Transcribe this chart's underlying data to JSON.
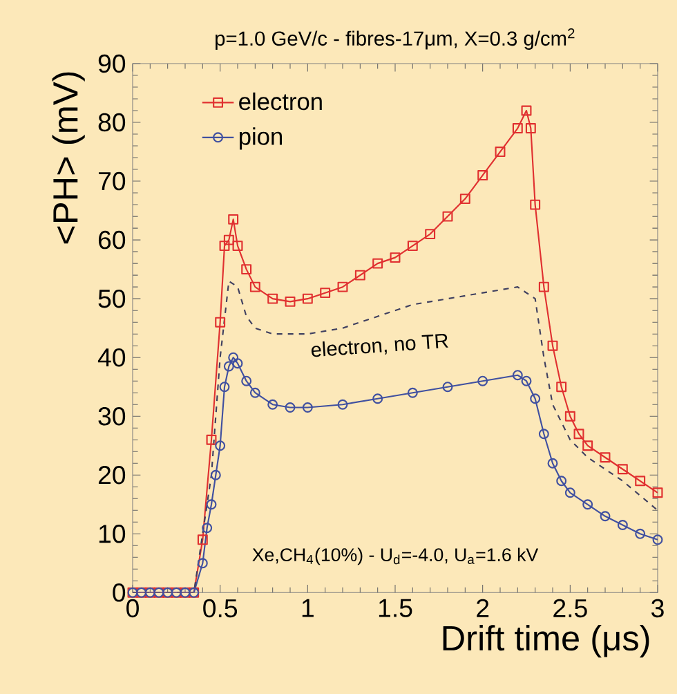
{
  "chart_data": {
    "type": "line",
    "title": "p=1.0 GeV/c - fibres-17μm, X=0.3 g/cm$^{2}$",
    "xlabel": "Drift time (μs)",
    "ylabel": "<PH> (mV)",
    "xlim": [
      0,
      3
    ],
    "ylim": [
      0,
      90
    ],
    "xticks": [
      0,
      0.5,
      1,
      1.5,
      2,
      2.5,
      3
    ],
    "yticks": [
      0,
      10,
      20,
      30,
      40,
      50,
      60,
      70,
      80,
      90
    ],
    "grid": false,
    "legend": "top left",
    "annotations": [
      "Xe,CH$_{4}$(10%) - U$_{d}$=-4.0, U$_{a}$=1.6 kV"
    ],
    "series": [
      {
        "name": "electron",
        "color": "#e03030",
        "marker": "square",
        "line_style": "solid",
        "x": [
          0,
          0.05,
          0.1,
          0.15,
          0.2,
          0.25,
          0.3,
          0.35,
          0.4,
          0.45,
          0.5,
          0.525,
          0.55,
          0.575,
          0.6,
          0.65,
          0.7,
          0.8,
          0.9,
          1.0,
          1.1,
          1.2,
          1.3,
          1.4,
          1.5,
          1.6,
          1.7,
          1.8,
          1.9,
          2.0,
          2.1,
          2.2,
          2.25,
          2.275,
          2.3,
          2.35,
          2.4,
          2.45,
          2.5,
          2.55,
          2.6,
          2.7,
          2.8,
          2.9,
          3.0
        ],
        "values": [
          0,
          0,
          0,
          0,
          0,
          0,
          0,
          0,
          9,
          26,
          46,
          59,
          60,
          63.5,
          59,
          55,
          52,
          50,
          49.5,
          50,
          51,
          52,
          54,
          56,
          57,
          59,
          61,
          64,
          67,
          71,
          75,
          79,
          82,
          79,
          66,
          52,
          42,
          35,
          30,
          27,
          25,
          23,
          21,
          19,
          17
        ]
      },
      {
        "name": "pion",
        "color": "#4050a0",
        "marker": "circle",
        "line_style": "solid",
        "x": [
          0,
          0.05,
          0.1,
          0.15,
          0.2,
          0.25,
          0.3,
          0.35,
          0.4,
          0.425,
          0.45,
          0.475,
          0.5,
          0.525,
          0.55,
          0.575,
          0.6,
          0.65,
          0.7,
          0.8,
          0.9,
          1.0,
          1.2,
          1.4,
          1.6,
          1.8,
          2.0,
          2.2,
          2.25,
          2.3,
          2.35,
          2.4,
          2.45,
          2.5,
          2.6,
          2.7,
          2.8,
          2.9,
          3.0
        ],
        "values": [
          0,
          0,
          0,
          0,
          0,
          0,
          0,
          0,
          5,
          11,
          15,
          20,
          25,
          35,
          38.5,
          40,
          39,
          36,
          34,
          32,
          31.5,
          31.5,
          32,
          33,
          34,
          35,
          36,
          37,
          36,
          33,
          27,
          22,
          19,
          17,
          15,
          13,
          11.5,
          10,
          9
        ]
      },
      {
        "name": "electron, no TR",
        "color": "#404060",
        "marker": "none",
        "line_style": "dashed",
        "x": [
          0,
          0.35,
          0.45,
          0.5,
          0.55,
          0.6,
          0.65,
          0.7,
          0.8,
          1.0,
          1.2,
          1.4,
          1.6,
          1.8,
          2.0,
          2.2,
          2.3,
          2.35,
          2.4,
          2.5,
          2.6,
          2.8,
          3.0
        ],
        "values": [
          0,
          0,
          20,
          40,
          53,
          52,
          47,
          45,
          44,
          44,
          45,
          47,
          49,
          50,
          51,
          52,
          50,
          40,
          32,
          26,
          23,
          19,
          14
        ]
      }
    ]
  }
}
